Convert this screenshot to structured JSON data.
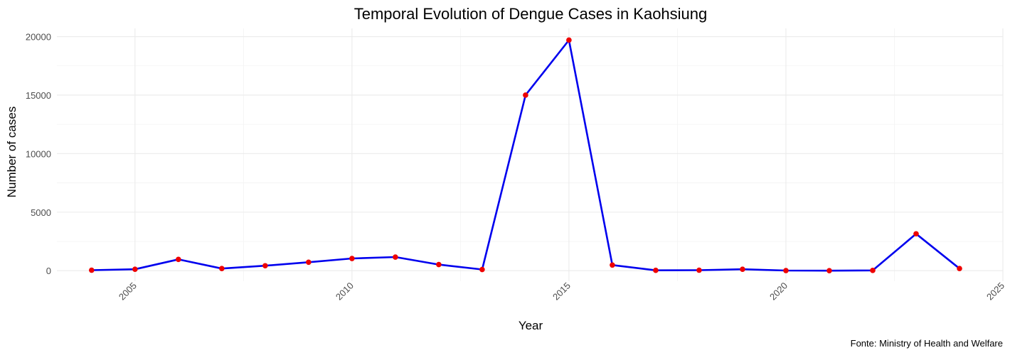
{
  "chart_data": {
    "type": "line",
    "title": "Temporal Evolution of Dengue Cases in Kaohsiung",
    "xlabel": "Year",
    "ylabel": "Number of cases",
    "caption": "Fonte: Ministry of Health and Welfare",
    "xlim": [
      2003.2,
      2025
    ],
    "ylim": [
      -900,
      20700
    ],
    "x_ticks": [
      2005,
      2010,
      2015,
      2020,
      2025
    ],
    "y_ticks": [
      0,
      5000,
      10000,
      15000,
      20000
    ],
    "x_tick_labels": [
      "2005",
      "2010",
      "2015",
      "2020",
      "2025"
    ],
    "y_tick_labels": [
      "0",
      "5000",
      "10000",
      "15000",
      "20000"
    ],
    "grid": true,
    "line_color": "#0000ee",
    "point_color": "#ee0000",
    "series": [
      {
        "x": [
          2004,
          2005,
          2006,
          2007,
          2008,
          2009,
          2010,
          2011,
          2012,
          2013,
          2014,
          2015,
          2016,
          2017,
          2018,
          2019,
          2020,
          2021,
          2022,
          2023,
          2024
        ],
        "values": [
          40,
          120,
          960,
          180,
          420,
          720,
          1040,
          1160,
          520,
          100,
          15000,
          19700,
          480,
          30,
          40,
          120,
          10,
          0,
          20,
          3150,
          180
        ]
      }
    ]
  }
}
